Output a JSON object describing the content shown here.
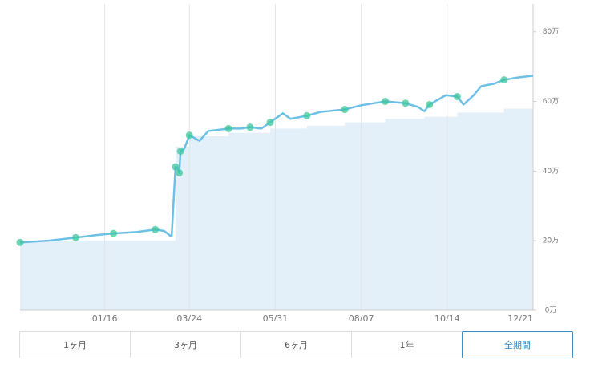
{
  "chart_data": {
    "type": "line",
    "x": [
      "11/10",
      "12/02",
      "12/24",
      "01/09",
      "01/23",
      "02/10",
      "02/25",
      "03/04",
      "03/09",
      "03/10",
      "03/13",
      "03/15",
      "03/16",
      "03/17",
      "03/20",
      "03/24",
      "04/01",
      "04/08",
      "04/24",
      "05/04",
      "05/11",
      "05/20",
      "05/27",
      "06/06",
      "06/12",
      "06/25",
      "07/06",
      "07/25",
      "08/07",
      "08/26",
      "09/11",
      "09/21",
      "09/26",
      "09/30",
      "10/13",
      "10/22",
      "10/27",
      "11/04",
      "11/10",
      "11/20",
      "11/28",
      "12/09",
      "12/21"
    ],
    "series": [
      {
        "type": "area",
        "color": "#e3f0f9",
        "values": [
          20,
          20,
          20,
          20,
          20,
          20,
          20,
          20,
          20,
          20,
          47,
          47,
          47,
          47,
          47,
          50,
          50,
          50,
          51,
          51,
          51,
          51,
          52.2,
          52.2,
          52.2,
          53,
          53,
          54,
          54,
          55,
          55,
          55,
          55.6,
          55.6,
          55.6,
          56.8,
          56.8,
          56.8,
          56.8,
          56.8,
          57.9,
          57.9,
          57.9
        ]
      },
      {
        "type": "line",
        "color": "#6cc0e5",
        "values": [
          19.5,
          20,
          20.9,
          21.6,
          22.1,
          22.5,
          23.2,
          22.8,
          21.4,
          21.4,
          41.2,
          40.8,
          39.5,
          45.7,
          46.4,
          50.3,
          48.7,
          51.5,
          52.2,
          52.2,
          52.6,
          52.2,
          54,
          56.6,
          55,
          55.9,
          57,
          57.7,
          58.9,
          60,
          59.5,
          58.4,
          57.2,
          59.1,
          61.8,
          61.4,
          59.1,
          61.8,
          64.4,
          65.1,
          66.2,
          66.9,
          67.4
        ]
      },
      {
        "type": "points",
        "color": "#3cc79a",
        "values": [
          19.5,
          null,
          20.9,
          null,
          22.1,
          null,
          23.2,
          null,
          null,
          null,
          41.2,
          null,
          39.5,
          45.7,
          null,
          50.3,
          null,
          null,
          52.2,
          null,
          52.6,
          null,
          54,
          null,
          null,
          55.9,
          null,
          57.7,
          null,
          60,
          59.5,
          null,
          null,
          59.1,
          null,
          61.4,
          null,
          null,
          null,
          null,
          66.2,
          null,
          null
        ]
      }
    ],
    "xticks": [
      "01/16",
      "03/24",
      "05/31",
      "08/07",
      "10/14",
      "12/21"
    ],
    "ylim": [
      0,
      88
    ],
    "yticks": [
      {
        "value": 0,
        "label": "0万"
      },
      {
        "value": 20,
        "label": "20万"
      },
      {
        "value": 40,
        "label": "40万"
      },
      {
        "value": 60,
        "label": "60万"
      },
      {
        "value": 80,
        "label": "80万"
      }
    ],
    "grid": true
  },
  "range_buttons": {
    "items": [
      "1ヶ月",
      "3ヶ月",
      "6ヶ月",
      "1年",
      "全期間"
    ],
    "selected": 4
  }
}
